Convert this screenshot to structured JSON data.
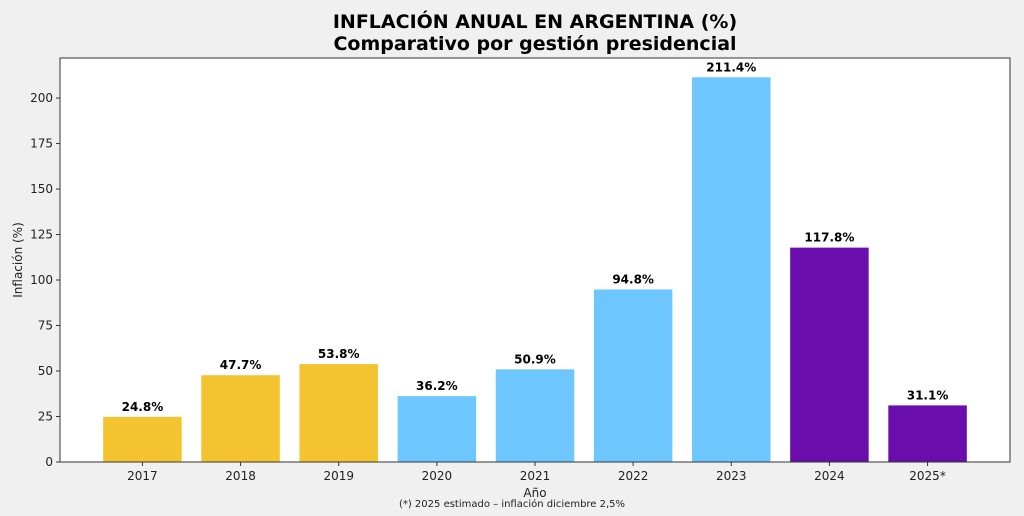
{
  "chart_data": {
    "type": "bar",
    "title": "INFLACIÓN ANUAL EN ARGENTINA (%)",
    "subtitle": "Comparativo por gestión presidencial",
    "xlabel": "Año",
    "ylabel": "Inflación (%)",
    "footnote": "(*) 2025 estimado – inflación diciembre 2,5%",
    "categories": [
      "2017",
      "2018",
      "2019",
      "2020",
      "2021",
      "2022",
      "2023",
      "2024",
      "2025*"
    ],
    "values": [
      24.8,
      47.7,
      53.8,
      36.2,
      50.9,
      94.8,
      211.4,
      117.8,
      31.1
    ],
    "data_labels": [
      "24.8%",
      "47.7%",
      "53.8%",
      "36.2%",
      "50.9%",
      "94.8%",
      "211.4%",
      "117.8%",
      "31.1%"
    ],
    "colors": [
      "#f4c430",
      "#f4c430",
      "#f4c430",
      "#6ec6ff",
      "#6ec6ff",
      "#6ec6ff",
      "#6ec6ff",
      "#6a0dad",
      "#6a0dad"
    ],
    "ylim": [
      0,
      222
    ],
    "yticks": [
      0,
      25,
      50,
      75,
      100,
      125,
      150,
      175,
      200
    ],
    "grid": false,
    "legend": "none"
  }
}
